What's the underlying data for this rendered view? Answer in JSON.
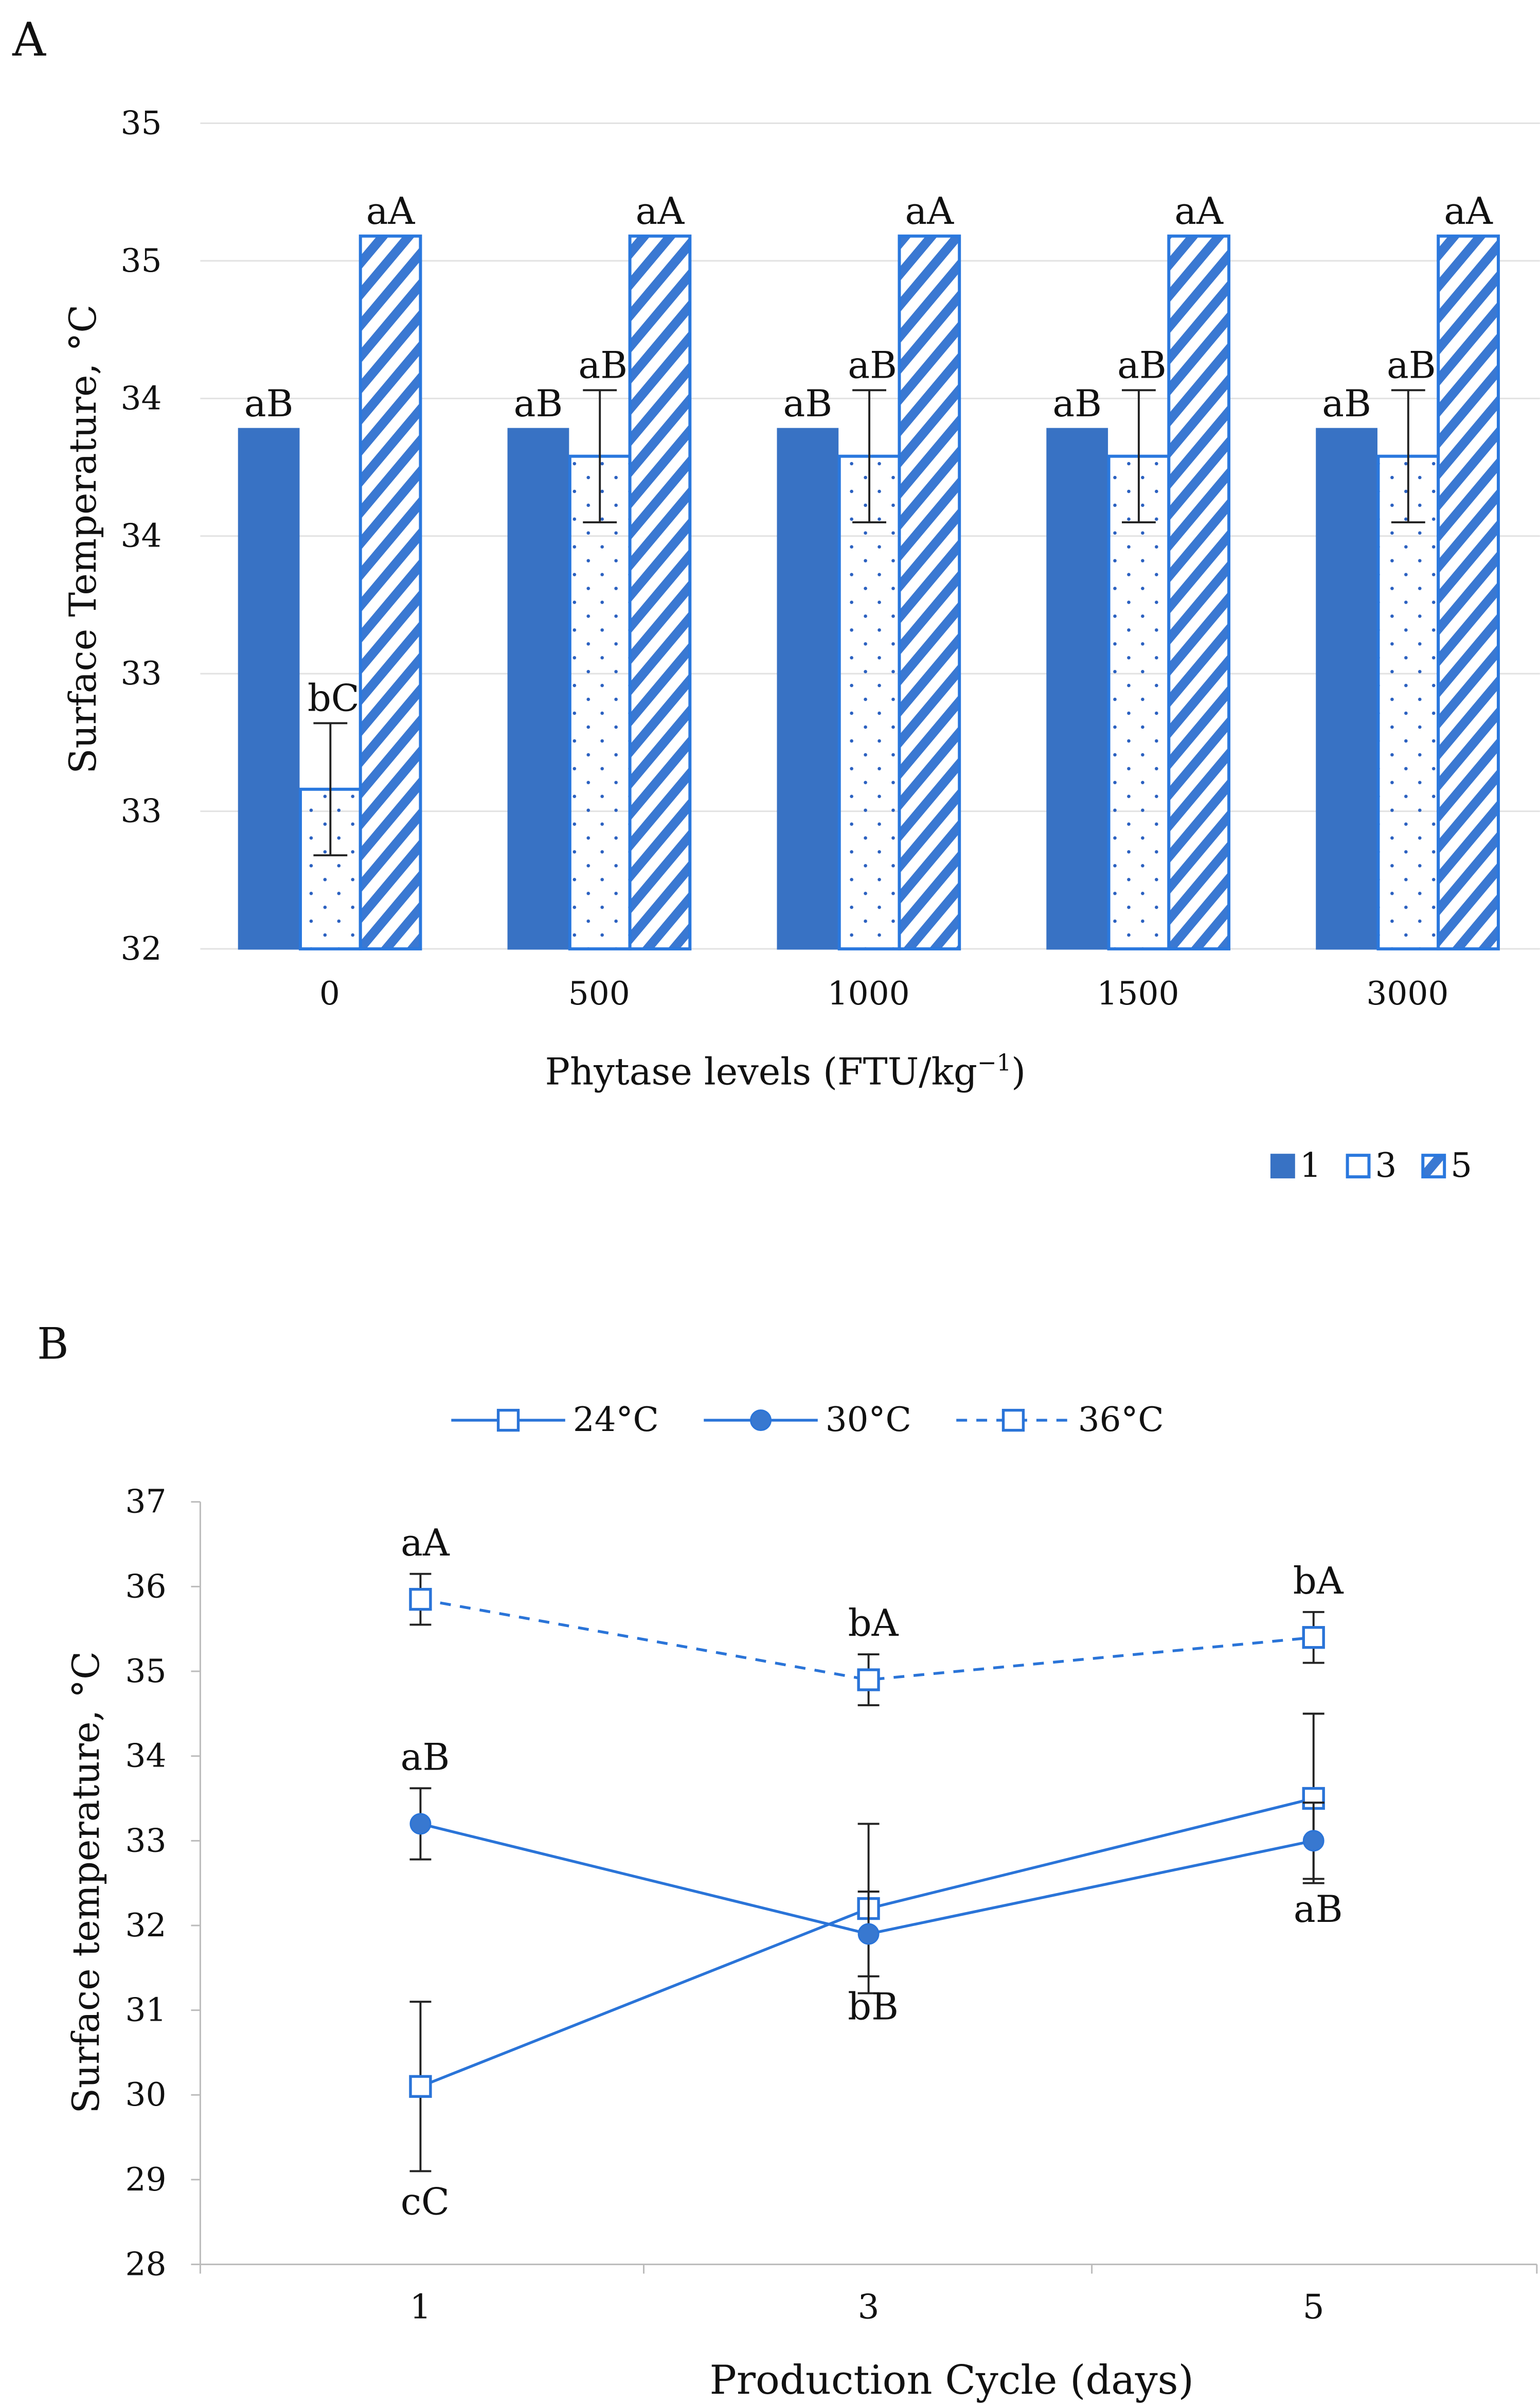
{
  "chart_data": [
    {
      "panel_label": "A",
      "type": "bar",
      "xlabel": "Phytase levels (FTU/kg",
      "xlabel_sup": "−1",
      "xlabel_end": ")",
      "ylabel": "Surface Temperature, °C",
      "ylim": [
        32,
        35
      ],
      "yticks": [
        32,
        32.5,
        33,
        33.5,
        34,
        34.5,
        35
      ],
      "ytick_labels": [
        "32",
        "33",
        "33",
        "34",
        "34",
        "35",
        "35"
      ],
      "grid": true,
      "legend_position": "bottom-right",
      "categories": [
        "0",
        "500",
        "1000",
        "1500",
        "3000"
      ],
      "series": [
        {
          "name": "1",
          "values": [
            33.89,
            33.89,
            33.89,
            33.89,
            33.89
          ],
          "errors": [
            null,
            null,
            null,
            null,
            null
          ],
          "letters": [
            "aB",
            "aB",
            "aB",
            "aB",
            "aB"
          ]
        },
        {
          "name": "3",
          "values": [
            32.58,
            33.79,
            33.79,
            33.79,
            33.79
          ],
          "errors": [
            0.24,
            0.24,
            0.24,
            0.24,
            0.24
          ],
          "letters": [
            "bC",
            "aB",
            "aB",
            "aB",
            "aB"
          ]
        },
        {
          "name": "5",
          "values": [
            34.59,
            34.59,
            34.59,
            34.59,
            34.59
          ],
          "errors": [
            null,
            null,
            null,
            null,
            null
          ],
          "letters": [
            "aA",
            "aA",
            "aA",
            "aA",
            "aA"
          ]
        }
      ],
      "colors": {
        "solid": "#3872c4",
        "outline": "#2a78de"
      }
    },
    {
      "panel_label": "B",
      "type": "line",
      "xlabel": "Production Cycle (days)",
      "ylabel": "Surface temperature, °C",
      "ylim": [
        28,
        37
      ],
      "yticks": [
        28,
        29,
        30,
        31,
        32,
        33,
        34,
        35,
        36,
        37
      ],
      "x": [
        "1",
        "3",
        "5"
      ],
      "legend_position": "top",
      "series": [
        {
          "name": "24°C",
          "marker": "square-open",
          "dash": false,
          "values": [
            30.1,
            32.2,
            33.5
          ],
          "errors": [
            1.0,
            1.0,
            1.0
          ],
          "letters": [
            "cC",
            "",
            ""
          ],
          "letter_pos": [
            "below",
            "",
            ""
          ]
        },
        {
          "name": "30°C",
          "marker": "circle-filled",
          "dash": false,
          "values": [
            33.2,
            31.9,
            33.0
          ],
          "errors": [
            0.42,
            0.5,
            0.45
          ],
          "letters": [
            "aB",
            "bB",
            "aB"
          ],
          "letter_pos": [
            "above",
            "below",
            "below"
          ]
        },
        {
          "name": "36°C",
          "marker": "square-open",
          "dash": true,
          "values": [
            35.85,
            34.9,
            35.4
          ],
          "errors": [
            0.3,
            0.3,
            0.3
          ],
          "letters": [
            "aA",
            "bA",
            "bA"
          ],
          "letter_pos": [
            "above",
            "above",
            "above"
          ]
        }
      ],
      "colors": {
        "line": "#2a74d8",
        "marker_fill": "#3878d0"
      }
    }
  ]
}
